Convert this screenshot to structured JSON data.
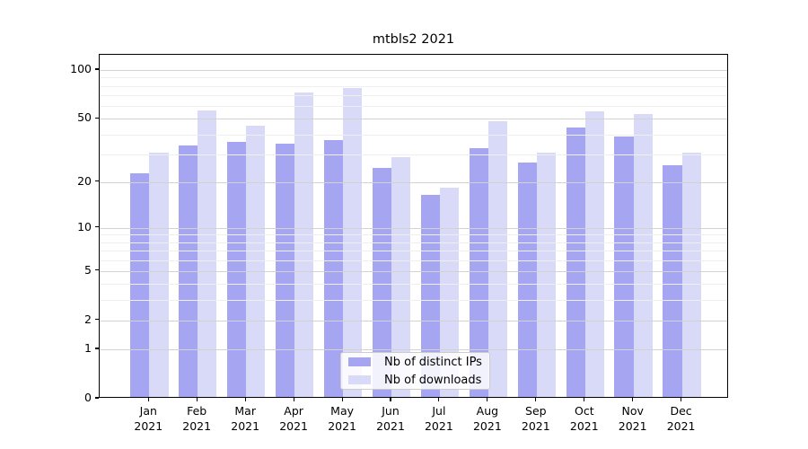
{
  "chart_data": {
    "type": "bar",
    "title": "mtbls2 2021",
    "categories": [
      "Jan",
      "Feb",
      "Mar",
      "Apr",
      "May",
      "Jun",
      "Jul",
      "Aug",
      "Sep",
      "Oct",
      "Nov",
      "Dec"
    ],
    "x_tick_year": "2021",
    "series": [
      {
        "name": "Nb of distinct IPs",
        "color": "#a5a5f2",
        "values": [
          22,
          33,
          35,
          34,
          36,
          24,
          16,
          32,
          26,
          43,
          38,
          25
        ]
      },
      {
        "name": "Nb of downloads",
        "color": "#d9d9f8",
        "values": [
          30,
          55,
          44,
          71,
          76,
          28,
          18,
          47,
          30,
          54,
          52,
          30
        ]
      }
    ],
    "yscale": "log1p",
    "ylabel": "",
    "xlabel": "",
    "ylim": [
      0,
      125
    ],
    "y_major_ticks": [
      100,
      50,
      20,
      10,
      5,
      2,
      1,
      0
    ],
    "y_minor_ticks": [
      3,
      4,
      6,
      7,
      8,
      9,
      30,
      40,
      60,
      70,
      80,
      90
    ],
    "grid": "horizontal, major and minor, drawn over bars",
    "legend_position": "bottom-center"
  },
  "colors": {
    "grid_major": "#d2d2d2",
    "grid_minor": "#efefef",
    "axis": "#000000",
    "background": "#ffffff"
  }
}
